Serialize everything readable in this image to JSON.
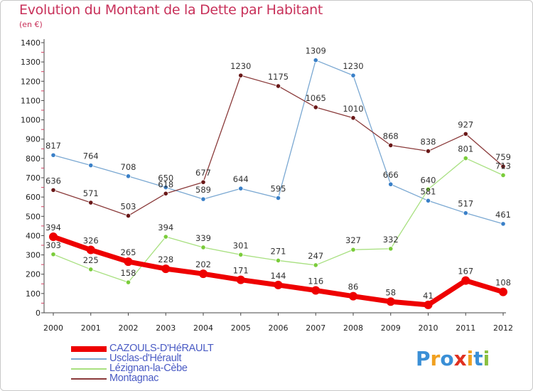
{
  "title": "Evolution du Montant de la Dette par Habitant",
  "unit": "(en €)",
  "logo": {
    "text": "Proxiti",
    "letters": [
      {
        "ch": "P",
        "color": "#3a8fd6"
      },
      {
        "ch": "r",
        "color": "#f0a020"
      },
      {
        "ch": "o",
        "color": "#3a8fd6"
      },
      {
        "ch": "x",
        "color": "#e03020"
      },
      {
        "ch": "i",
        "color": "#f0a020"
      },
      {
        "ch": "t",
        "color": "#3a8fd6"
      },
      {
        "ch": "i",
        "color": "#8ac040"
      }
    ]
  },
  "chart_data": {
    "type": "line",
    "title": "Evolution du Montant de la Dette par Habitant",
    "ylabel": "(en €)",
    "xlabel": "",
    "x": [
      "2000",
      "2001",
      "2002",
      "2003",
      "2004",
      "2005",
      "2006",
      "2007",
      "2008",
      "2009",
      "2010",
      "2011",
      "2012"
    ],
    "ylim": [
      0,
      1400
    ],
    "yticks": [
      0,
      100,
      200,
      300,
      400,
      500,
      600,
      700,
      800,
      900,
      1000,
      1100,
      1200,
      1300,
      1400
    ],
    "grid": false,
    "legend_position": "bottom-left",
    "series": [
      {
        "name": "CAZOULS-D'HéRAULT",
        "color": "#ee0000",
        "marker": "#ee0000",
        "width": 7,
        "values": [
          394,
          326,
          265,
          228,
          202,
          171,
          144,
          116,
          86,
          58,
          41,
          167,
          108
        ]
      },
      {
        "name": "Usclas-d'Hérault",
        "color": "#7aa8d2",
        "marker": "#3a80c8",
        "width": 1.3,
        "values": [
          817,
          764,
          708,
          650,
          589,
          644,
          595,
          1309,
          1230,
          666,
          581,
          517,
          461
        ]
      },
      {
        "name": "Lézignan-la-Cèbe",
        "color": "#a8e080",
        "marker": "#7acc3a",
        "width": 1.3,
        "values": [
          303,
          225,
          158,
          394,
          339,
          301,
          271,
          247,
          327,
          332,
          640,
          801,
          713
        ]
      },
      {
        "name": "Montagnac",
        "color": "#8a3a3a",
        "marker": "#6a1818",
        "width": 1.3,
        "values": [
          636,
          571,
          503,
          618,
          677,
          1230,
          1175,
          1065,
          1010,
          868,
          838,
          927,
          759
        ]
      }
    ]
  }
}
